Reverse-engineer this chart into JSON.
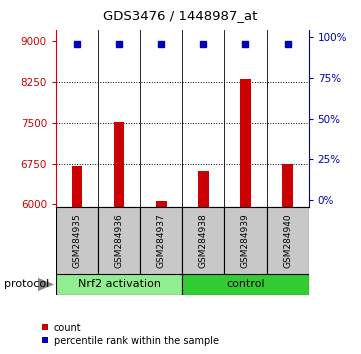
{
  "title": "GDS3476 / 1448987_at",
  "samples": [
    "GSM284935",
    "GSM284936",
    "GSM284937",
    "GSM284938",
    "GSM284939",
    "GSM284940"
  ],
  "counts": [
    6700,
    7520,
    6060,
    6620,
    8310,
    6750
  ],
  "percentile_ranks": [
    96,
    96,
    96,
    96,
    96,
    96
  ],
  "ylim_left": [
    5950,
    9200
  ],
  "ylim_right": [
    -4.5,
    104.5
  ],
  "yticks_left": [
    6000,
    6750,
    7500,
    8250,
    9000
  ],
  "yticks_right": [
    0,
    25,
    50,
    75,
    100
  ],
  "grid_values": [
    6750,
    7500,
    8250
  ],
  "groups": [
    {
      "label": "Nrf2 activation",
      "samples": [
        0,
        1,
        2
      ],
      "color": "#90EE90"
    },
    {
      "label": "control",
      "samples": [
        3,
        4,
        5
      ],
      "color": "#32CD32"
    }
  ],
  "bar_color": "#CC0000",
  "bar_width": 0.25,
  "marker_color": "#0000BB",
  "left_axis_color": "#CC0000",
  "right_axis_color": "#0000BB",
  "background_color": "#FFFFFF",
  "protocol_label": "protocol",
  "legend_count": "count",
  "legend_percentile": "percentile rank within the sample",
  "sample_box_color": "#C8C8C8",
  "title_fontsize": 9.5,
  "tick_fontsize": 7.5,
  "label_fontsize": 6.5,
  "group_fontsize": 8,
  "legend_fontsize": 7
}
